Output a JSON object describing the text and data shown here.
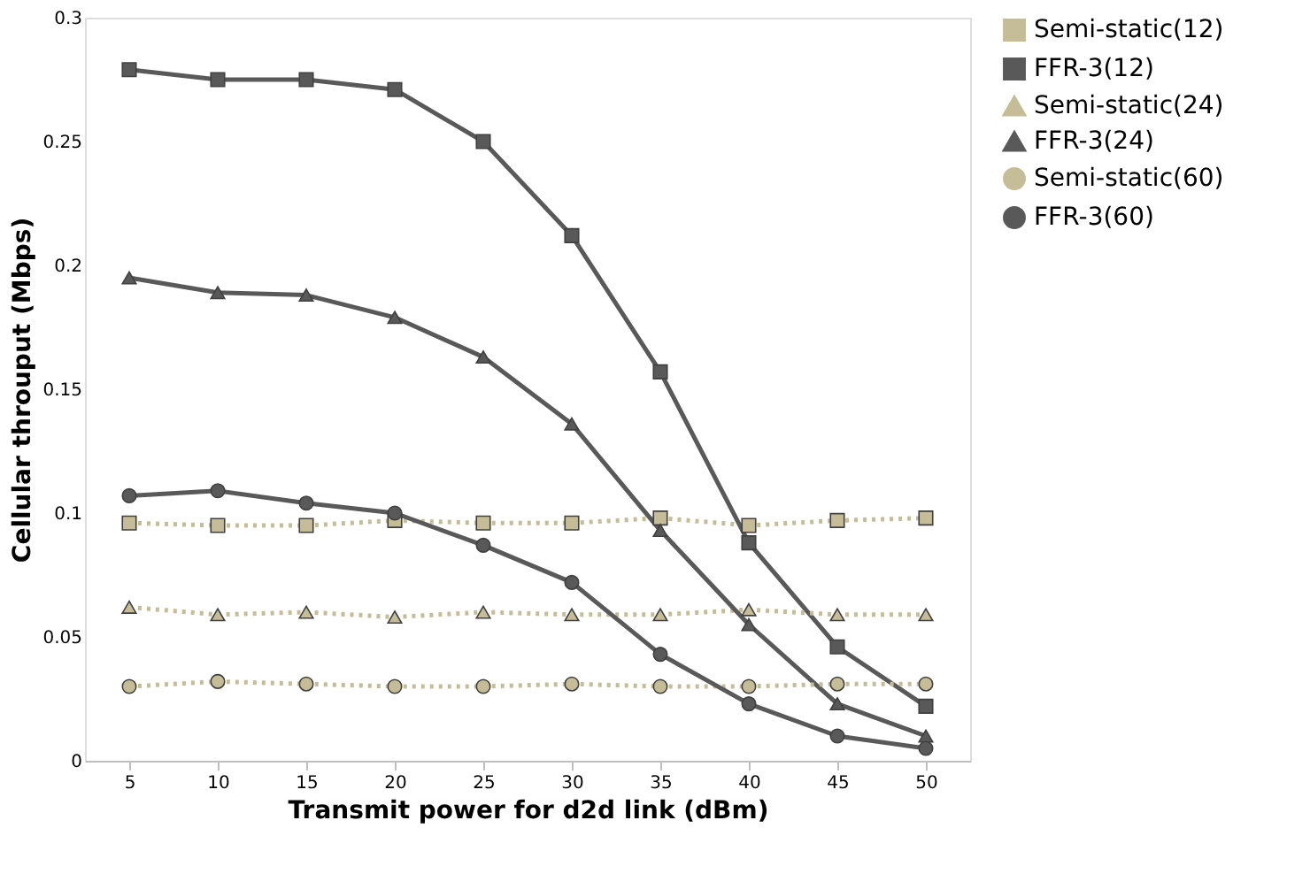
{
  "chart_data": {
    "type": "line",
    "xlabel": "Transmit power for d2d link (dBm)",
    "ylabel": "Cellular throuput (Mbps)",
    "categories": [
      "5",
      "10",
      "15",
      "20",
      "25",
      "30",
      "35",
      "40",
      "45",
      "50"
    ],
    "ylim": [
      0,
      0.3
    ],
    "yticks": [
      {
        "value": 0,
        "label": "0"
      },
      {
        "value": 0.05,
        "label": "0.05"
      },
      {
        "value": 0.1,
        "label": "0.1"
      },
      {
        "value": 0.15,
        "label": "0.15"
      },
      {
        "value": 0.2,
        "label": "0.2"
      },
      {
        "value": 0.25,
        "label": "0.25"
      },
      {
        "value": 0.3,
        "label": "0.3"
      }
    ],
    "grid": false,
    "legend": "right",
    "series": [
      {
        "name": "Semi-static(12)",
        "color": "#c4bd97",
        "marker": "square",
        "line_style": "dotted",
        "values": [
          0.096,
          0.095,
          0.095,
          0.097,
          0.096,
          0.096,
          0.098,
          0.095,
          0.097,
          0.098
        ]
      },
      {
        "name": "FFR-3(12)",
        "color": "#595959",
        "marker": "square",
        "line_style": "solid",
        "values": [
          0.279,
          0.275,
          0.275,
          0.271,
          0.25,
          0.212,
          0.157,
          0.088,
          0.046,
          0.022
        ]
      },
      {
        "name": "Semi-static(24)",
        "color": "#c4bd97",
        "marker": "triangle",
        "line_style": "dotted",
        "values": [
          0.062,
          0.059,
          0.06,
          0.058,
          0.06,
          0.059,
          0.059,
          0.061,
          0.059,
          0.059
        ]
      },
      {
        "name": "FFR-3(24)",
        "color": "#595959",
        "marker": "triangle",
        "line_style": "solid",
        "values": [
          0.195,
          0.189,
          0.188,
          0.179,
          0.163,
          0.136,
          0.093,
          0.055,
          0.023,
          0.01
        ]
      },
      {
        "name": "Semi-static(60)",
        "color": "#c4bd97",
        "marker": "circle",
        "line_style": "dotted",
        "values": [
          0.03,
          0.032,
          0.031,
          0.03,
          0.03,
          0.031,
          0.03,
          0.03,
          0.031,
          0.031
        ]
      },
      {
        "name": "FFR-3(60)",
        "color": "#595959",
        "marker": "circle",
        "line_style": "solid",
        "values": [
          0.107,
          0.109,
          0.104,
          0.1,
          0.087,
          0.072,
          0.043,
          0.023,
          0.01,
          0.005
        ]
      }
    ]
  }
}
